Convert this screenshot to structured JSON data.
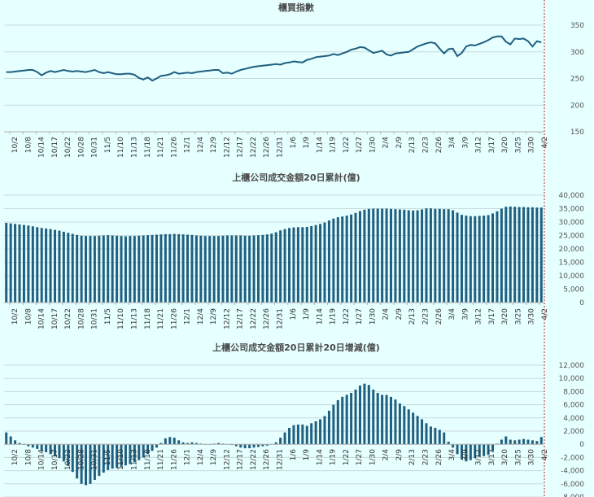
{
  "colors": {
    "series": "#1f5f80",
    "background": "#e6ffff",
    "grid": "#c9d9d9",
    "marker": "#cc2222"
  },
  "chart_data": [
    {
      "type": "line",
      "title": "櫃買指數",
      "ylim": [
        150,
        350
      ],
      "yticks": [
        150,
        200,
        250,
        300,
        350
      ],
      "ytick_labels": [
        "150",
        "200",
        "250",
        "300",
        "350"
      ],
      "grid": true,
      "x_tick_labels": [
        "10/2",
        "10/8",
        "10/14",
        "10/17",
        "10/22",
        "10/28",
        "10/31",
        "11/5",
        "11/10",
        "11/13",
        "11/18",
        "11/21",
        "11/26",
        "12/1",
        "12/4",
        "12/9",
        "12/12",
        "12/17",
        "12/22",
        "12/26",
        "12/31",
        "1/6",
        "1/9",
        "1/14",
        "1/19",
        "1/22",
        "1/27",
        "1/30",
        "2/4",
        "2/9",
        "2/13",
        "2/23",
        "2/26",
        "3/4",
        "3/9",
        "3/12",
        "3/17",
        "3/20",
        "3/25",
        "3/30",
        "4/2"
      ],
      "values": [
        262,
        262,
        263,
        264,
        265,
        266,
        266,
        262,
        256,
        261,
        264,
        262,
        264,
        266,
        264,
        263,
        264,
        263,
        262,
        264,
        266,
        262,
        260,
        262,
        260,
        258,
        258,
        259,
        259,
        257,
        251,
        248,
        252,
        246,
        250,
        255,
        256,
        258,
        262,
        259,
        260,
        261,
        260,
        262,
        263,
        264,
        265,
        266,
        266,
        260,
        261,
        259,
        263,
        266,
        268,
        270,
        272,
        273,
        274,
        275,
        276,
        277,
        276,
        279,
        280,
        282,
        281,
        280,
        285,
        287,
        290,
        291,
        292,
        293,
        296,
        294,
        297,
        300,
        304,
        306,
        309,
        308,
        303,
        298,
        300,
        302,
        295,
        293,
        297,
        298,
        299,
        300,
        305,
        310,
        313,
        316,
        318,
        316,
        306,
        297,
        305,
        306,
        292,
        298,
        310,
        313,
        312,
        315,
        318,
        322,
        327,
        329,
        329,
        319,
        314,
        325,
        324,
        325,
        320,
        310,
        320,
        318
      ]
    },
    {
      "type": "bar",
      "title": "上櫃公司成交金額20日累計(億)",
      "ylim": [
        0,
        40000
      ],
      "yticks": [
        0,
        5000,
        10000,
        15000,
        20000,
        25000,
        30000,
        35000,
        40000
      ],
      "ytick_labels": [
        "0",
        "5,000",
        "10,000",
        "15,000",
        "20,000",
        "25,000",
        "30,000",
        "35,000",
        "40,000"
      ],
      "grid": true,
      "x_tick_labels": [
        "10/2",
        "10/8",
        "10/14",
        "10/17",
        "10/22",
        "10/28",
        "10/31",
        "11/5",
        "11/10",
        "11/13",
        "11/18",
        "11/21",
        "11/26",
        "12/1",
        "12/4",
        "12/9",
        "12/12",
        "12/17",
        "12/22",
        "12/26",
        "12/31",
        "1/6",
        "1/9",
        "1/14",
        "1/19",
        "1/22",
        "1/27",
        "1/30",
        "2/4",
        "2/9",
        "2/13",
        "2/23",
        "2/26",
        "3/4",
        "3/9",
        "3/12",
        "3/17",
        "3/20",
        "3/25",
        "3/30",
        "4/2"
      ],
      "values": [
        29700,
        29500,
        29300,
        29100,
        28900,
        28700,
        28400,
        28100,
        27800,
        27600,
        27400,
        27100,
        26800,
        26400,
        26000,
        25600,
        25200,
        24900,
        24800,
        24800,
        24800,
        24900,
        25000,
        25100,
        25000,
        24900,
        24800,
        24700,
        24800,
        24800,
        24900,
        25000,
        25100,
        25200,
        25300,
        25400,
        25500,
        25500,
        25600,
        25500,
        25400,
        25300,
        25200,
        25000,
        24900,
        24800,
        24800,
        24800,
        24800,
        24900,
        25000,
        25000,
        25000,
        25000,
        24900,
        24900,
        25000,
        25100,
        25200,
        25400,
        25700,
        26200,
        26900,
        27400,
        27800,
        28000,
        28100,
        28100,
        28200,
        28500,
        28900,
        29300,
        29800,
        30600,
        31300,
        31800,
        32100,
        32400,
        32800,
        33400,
        34100,
        34600,
        34900,
        35000,
        35000,
        35000,
        35000,
        34900,
        34800,
        34700,
        34600,
        34400,
        34300,
        34400,
        34700,
        35100,
        35100,
        34900,
        34900,
        34800,
        34800,
        34400,
        33500,
        32700,
        32400,
        32200,
        32200,
        32300,
        32400,
        32600,
        33200,
        34000,
        35000,
        35700,
        35800,
        35700,
        35600,
        35600,
        35500,
        35500,
        35400,
        35400
      ]
    },
    {
      "type": "bar",
      "title": "上櫃公司成交金額20日累計20日增減(億)",
      "ylim": [
        -8000,
        12000
      ],
      "yticks": [
        -8000,
        -6000,
        -4000,
        -2000,
        0,
        2000,
        4000,
        6000,
        8000,
        10000,
        12000
      ],
      "ytick_labels": [
        "-8,000",
        "-6,000",
        "-4,000",
        "-2,000",
        "0",
        "2,000",
        "4,000",
        "6,000",
        "8,000",
        "10,000",
        "12,000"
      ],
      "grid": true,
      "x_tick_labels": [
        "10/2",
        "10/8",
        "10/14",
        "10/17",
        "10/22",
        "10/28",
        "10/31",
        "11/5",
        "11/10",
        "11/13",
        "11/18",
        "11/21",
        "11/26",
        "12/1",
        "12/4",
        "12/9",
        "12/12",
        "12/17",
        "12/22",
        "12/26",
        "12/31",
        "1/6",
        "1/9",
        "1/14",
        "1/19",
        "1/22",
        "1/27",
        "1/30",
        "2/4",
        "2/9",
        "2/13",
        "2/23",
        "2/26",
        "3/4",
        "3/9",
        "3/12",
        "3/17",
        "3/20",
        "3/25",
        "3/30",
        "4/2"
      ],
      "values": [
        1800,
        1200,
        600,
        200,
        -100,
        -300,
        -500,
        -700,
        -900,
        -1200,
        -1500,
        -1800,
        -2100,
        -2600,
        -3300,
        -4200,
        -5200,
        -6000,
        -6200,
        -6000,
        -5400,
        -4800,
        -4300,
        -3900,
        -3700,
        -3600,
        -3400,
        -3200,
        -3000,
        -2700,
        -2400,
        -2000,
        -1500,
        -1000,
        -500,
        200,
        900,
        1100,
        1000,
        600,
        300,
        200,
        300,
        200,
        100,
        0,
        0,
        100,
        200,
        100,
        0,
        -100,
        -300,
        -500,
        -600,
        -600,
        -500,
        -400,
        -300,
        -200,
        0,
        300,
        1000,
        1800,
        2500,
        2900,
        3000,
        3000,
        2800,
        3200,
        3500,
        3800,
        4300,
        5100,
        6000,
        6700,
        7200,
        7500,
        7800,
        8300,
        8900,
        9200,
        9000,
        8300,
        7800,
        7500,
        7500,
        7200,
        6800,
        6200,
        5800,
        5300,
        4800,
        4300,
        3800,
        3200,
        2700,
        2500,
        2200,
        1800,
        400,
        -500,
        -1500,
        -2300,
        -2600,
        -2400,
        -2100,
        -1900,
        -1800,
        -1600,
        -1000,
        100,
        700,
        1200,
        700,
        600,
        700,
        800,
        700,
        600,
        500,
        1100
      ]
    }
  ]
}
